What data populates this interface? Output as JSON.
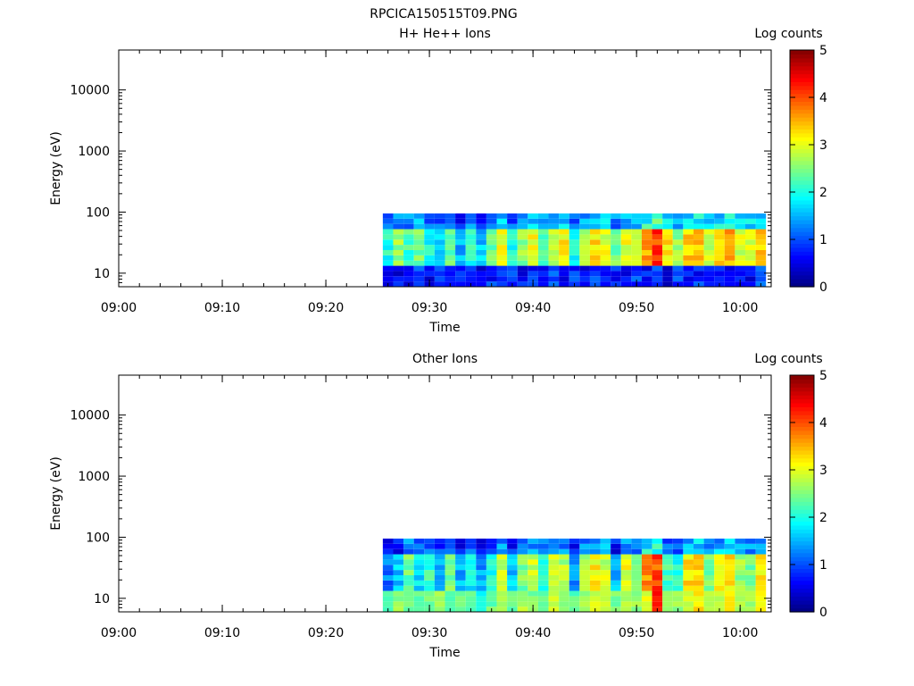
{
  "figure": {
    "title": "RPCICA150515T09.PNG"
  },
  "chart_data": [
    {
      "type": "heatmap",
      "title": "H+ He++ Ions",
      "xlabel": "Time",
      "ylabel": "Energy (eV)",
      "y_scale": "log",
      "ylim": [
        6,
        45000
      ],
      "xlim": [
        "09:00",
        "10:03"
      ],
      "x_ticks": [
        "09:00",
        "09:10",
        "09:20",
        "09:30",
        "09:40",
        "09:50",
        "10:00"
      ],
      "y_ticks": [
        "10",
        "100",
        "1000",
        "10000"
      ],
      "colorbar": {
        "label": "Log counts",
        "range": [
          0,
          5
        ],
        "ticks": [
          "0",
          "1",
          "2",
          "3",
          "4",
          "5"
        ],
        "colormap": "jet"
      },
      "data_time_range": [
        "09:25",
        "10:03"
      ],
      "data_energy_range": [
        6,
        95
      ],
      "columns": [
        {
          "time": "09:26",
          "low_band": 0.8,
          "high_band": 2.0
        },
        {
          "time": "09:27",
          "low_band": 0.6,
          "high_band": 2.6
        },
        {
          "time": "09:28",
          "low_band": 0.7,
          "high_band": 2.2
        },
        {
          "time": "09:29",
          "low_band": 0.9,
          "high_band": 2.5
        },
        {
          "time": "09:30",
          "low_band": 0.5,
          "high_band": 2.0
        },
        {
          "time": "09:31",
          "low_band": 0.8,
          "high_band": 1.8
        },
        {
          "time": "09:32",
          "low_band": 0.6,
          "high_band": 2.3
        },
        {
          "time": "09:33",
          "low_band": 0.9,
          "high_band": 1.5
        },
        {
          "time": "09:34",
          "low_band": 0.7,
          "high_band": 2.1
        },
        {
          "time": "09:35",
          "low_band": 0.6,
          "high_band": 1.6
        },
        {
          "time": "09:36",
          "low_band": 0.8,
          "high_band": 2.4
        },
        {
          "time": "09:37",
          "low_band": 0.7,
          "high_band": 3.0
        },
        {
          "time": "09:38",
          "low_band": 0.9,
          "high_band": 2.0
        },
        {
          "time": "09:39",
          "low_band": 0.6,
          "high_band": 2.6
        },
        {
          "time": "09:40",
          "low_band": 0.8,
          "high_band": 3.0
        },
        {
          "time": "09:41",
          "low_band": 0.7,
          "high_band": 2.2
        },
        {
          "time": "09:42",
          "low_band": 0.9,
          "high_band": 2.8
        },
        {
          "time": "09:43",
          "low_band": 0.6,
          "high_band": 3.1
        },
        {
          "time": "09:44",
          "low_band": 0.8,
          "high_band": 2.0
        },
        {
          "time": "09:45",
          "low_band": 0.7,
          "high_band": 2.6
        },
        {
          "time": "09:46",
          "low_band": 0.9,
          "high_band": 3.2
        },
        {
          "time": "09:47",
          "low_band": 0.6,
          "high_band": 3.0
        },
        {
          "time": "09:48",
          "low_band": 0.8,
          "high_band": 2.4
        },
        {
          "time": "09:49",
          "low_band": 0.7,
          "high_band": 3.0
        },
        {
          "time": "09:50",
          "low_band": 0.9,
          "high_band": 2.8
        },
        {
          "time": "09:51",
          "low_band": 0.7,
          "high_band": 3.6
        },
        {
          "time": "09:52",
          "low_band": 0.8,
          "high_band": 4.1
        },
        {
          "time": "09:53",
          "low_band": 0.6,
          "high_band": 3.2
        },
        {
          "time": "09:54",
          "low_band": 0.9,
          "high_band": 2.6
        },
        {
          "time": "09:55",
          "low_band": 0.7,
          "high_band": 3.3
        },
        {
          "time": "09:56",
          "low_band": 0.8,
          "high_band": 3.5
        },
        {
          "time": "09:57",
          "low_band": 0.6,
          "high_band": 2.8
        },
        {
          "time": "09:58",
          "low_band": 0.9,
          "high_band": 3.2
        },
        {
          "time": "09:59",
          "low_band": 0.7,
          "high_band": 3.6
        },
        {
          "time": "10:00",
          "low_band": 0.8,
          "high_band": 2.9
        },
        {
          "time": "10:01",
          "low_band": 0.6,
          "high_band": 3.0
        },
        {
          "time": "10:02",
          "low_band": 0.9,
          "high_band": 3.3
        }
      ]
    },
    {
      "type": "heatmap",
      "title": "Other Ions",
      "xlabel": "Time",
      "ylabel": "Energy (eV)",
      "y_scale": "log",
      "ylim": [
        6,
        45000
      ],
      "xlim": [
        "09:00",
        "10:03"
      ],
      "x_ticks": [
        "09:00",
        "09:10",
        "09:20",
        "09:30",
        "09:40",
        "09:50",
        "10:00"
      ],
      "y_ticks": [
        "10",
        "100",
        "1000",
        "10000"
      ],
      "colorbar": {
        "label": "Log counts",
        "range": [
          0,
          5
        ],
        "ticks": [
          "0",
          "1",
          "2",
          "3",
          "4",
          "5"
        ],
        "colormap": "jet"
      },
      "data_time_range": [
        "09:25",
        "10:03"
      ],
      "data_energy_range": [
        6,
        95
      ],
      "columns": [
        {
          "time": "09:26",
          "low_band": 2.4,
          "high_band": 1.2
        },
        {
          "time": "09:27",
          "low_band": 2.6,
          "high_band": 1.6
        },
        {
          "time": "09:28",
          "low_band": 2.5,
          "high_band": 2.4
        },
        {
          "time": "09:29",
          "low_band": 2.3,
          "high_band": 1.8
        },
        {
          "time": "09:30",
          "low_band": 2.4,
          "high_band": 2.2
        },
        {
          "time": "09:31",
          "low_band": 2.6,
          "high_band": 1.6
        },
        {
          "time": "09:32",
          "low_band": 2.2,
          "high_band": 2.4
        },
        {
          "time": "09:33",
          "low_band": 2.5,
          "high_band": 1.5
        },
        {
          "time": "09:34",
          "low_band": 2.3,
          "high_band": 1.9
        },
        {
          "time": "09:35",
          "low_band": 2.0,
          "high_band": 1.4
        },
        {
          "time": "09:36",
          "low_band": 2.4,
          "high_band": 2.0
        },
        {
          "time": "09:37",
          "low_band": 2.6,
          "high_band": 2.8
        },
        {
          "time": "09:38",
          "low_band": 2.4,
          "high_band": 1.6
        },
        {
          "time": "09:39",
          "low_band": 2.7,
          "high_band": 2.5
        },
        {
          "time": "09:40",
          "low_band": 2.5,
          "high_band": 2.8
        },
        {
          "time": "09:41",
          "low_band": 2.4,
          "high_band": 2.0
        },
        {
          "time": "09:42",
          "low_band": 2.8,
          "high_band": 2.9
        },
        {
          "time": "09:43",
          "low_band": 2.6,
          "high_band": 2.7
        },
        {
          "time": "09:44",
          "low_band": 2.3,
          "high_band": 1.4
        },
        {
          "time": "09:45",
          "low_band": 2.7,
          "high_band": 2.6
        },
        {
          "time": "09:46",
          "low_band": 2.9,
          "high_band": 3.1
        },
        {
          "time": "09:47",
          "low_band": 2.8,
          "high_band": 2.9
        },
        {
          "time": "09:48",
          "low_band": 2.5,
          "high_band": 1.5
        },
        {
          "time": "09:49",
          "low_band": 2.8,
          "high_band": 3.0
        },
        {
          "time": "09:50",
          "low_band": 2.6,
          "high_band": 2.4
        },
        {
          "time": "09:51",
          "low_band": 3.0,
          "high_band": 3.7
        },
        {
          "time": "09:52",
          "low_band": 4.2,
          "high_band": 4.0
        },
        {
          "time": "09:53",
          "low_band": 2.8,
          "high_band": 2.2
        },
        {
          "time": "09:54",
          "low_band": 2.6,
          "high_band": 2.0
        },
        {
          "time": "09:55",
          "low_band": 2.9,
          "high_band": 3.2
        },
        {
          "time": "09:56",
          "low_band": 3.2,
          "high_band": 3.4
        },
        {
          "time": "09:57",
          "low_band": 2.7,
          "high_band": 2.4
        },
        {
          "time": "09:58",
          "low_band": 2.9,
          "high_band": 3.0
        },
        {
          "time": "09:59",
          "low_band": 3.3,
          "high_band": 3.3
        },
        {
          "time": "10:00",
          "low_band": 2.8,
          "high_band": 2.6
        },
        {
          "time": "10:01",
          "low_band": 2.7,
          "high_band": 2.5
        },
        {
          "time": "10:02",
          "low_band": 3.0,
          "high_band": 3.1
        }
      ]
    }
  ]
}
